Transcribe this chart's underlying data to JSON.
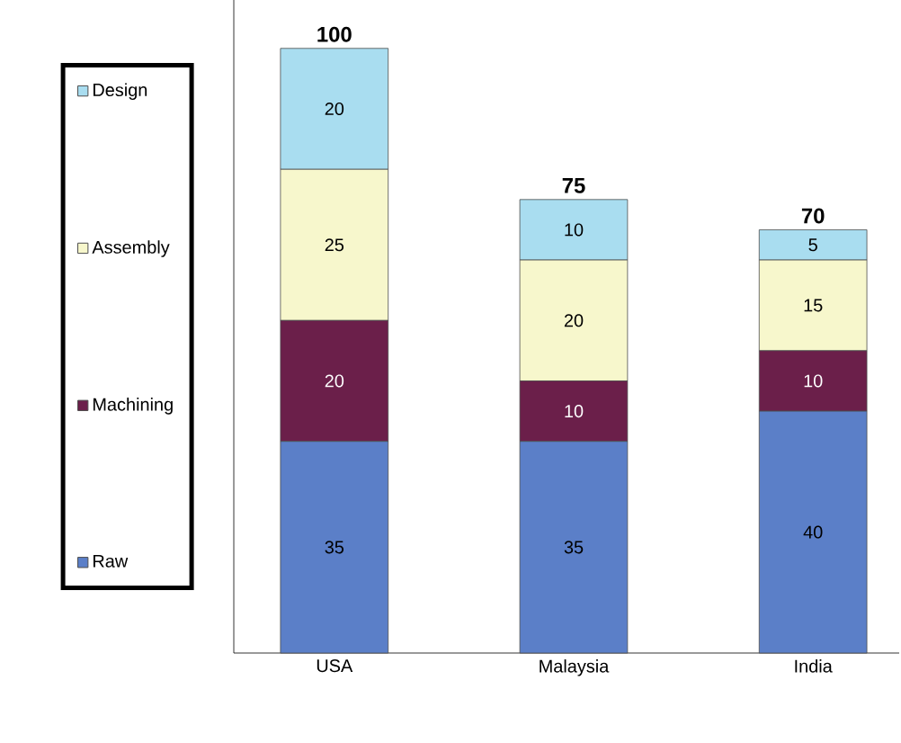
{
  "chart_data": {
    "type": "bar",
    "stacked": true,
    "categories": [
      "USA",
      "Malaysia",
      "India"
    ],
    "series": [
      {
        "name": "Raw",
        "color": "#5b7fc8",
        "values": [
          35,
          35,
          40
        ]
      },
      {
        "name": "Machining",
        "color": "#6b1f4a",
        "values": [
          20,
          10,
          10
        ]
      },
      {
        "name": "Assembly",
        "color": "#f7f7cc",
        "values": [
          25,
          20,
          15
        ]
      },
      {
        "name": "Design",
        "color": "#a9ddf0",
        "values": [
          20,
          10,
          5
        ]
      }
    ],
    "data_labels": true,
    "totals": [
      "100",
      "75",
      "70"
    ],
    "legend": "left",
    "tick_labels": "x"
  }
}
